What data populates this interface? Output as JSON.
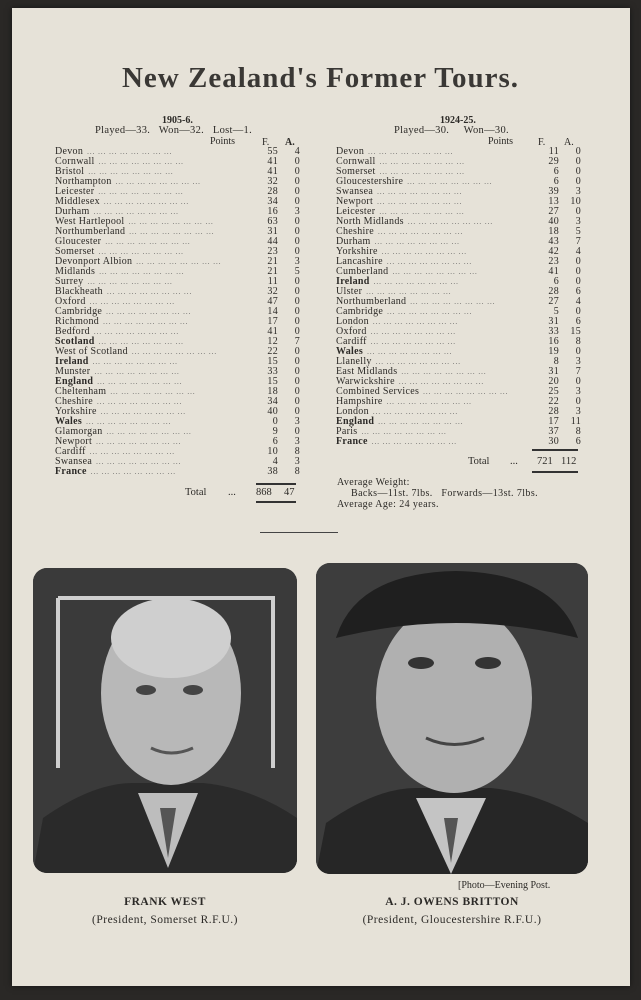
{
  "title": "New Zealand's Former Tours.",
  "tours": [
    {
      "season": "1905-6.",
      "summary": "Played—33.   Won—32.   Lost—1.",
      "points_label": "Points",
      "f_label": "F.",
      "a_label": "A.",
      "rows": [
        {
          "team": "Devon",
          "f": "55",
          "a": "4"
        },
        {
          "team": "Cornwall",
          "f": "41",
          "a": "0"
        },
        {
          "team": "Bristol",
          "f": "41",
          "a": "0"
        },
        {
          "team": "Northampton",
          "f": "32",
          "a": "0"
        },
        {
          "team": "Leicester",
          "f": "28",
          "a": "0"
        },
        {
          "team": "Middlesex",
          "f": "34",
          "a": "0"
        },
        {
          "team": "Durham",
          "f": "16",
          "a": "3"
        },
        {
          "team": "West Hartlepool",
          "f": "63",
          "a": "0"
        },
        {
          "team": "Northumberland",
          "f": "31",
          "a": "0"
        },
        {
          "team": "Gloucester",
          "f": "44",
          "a": "0"
        },
        {
          "team": "Somerset",
          "f": "23",
          "a": "0"
        },
        {
          "team": "Devonport Albion",
          "f": "21",
          "a": "3"
        },
        {
          "team": "Midlands",
          "f": "21",
          "a": "5"
        },
        {
          "team": "Surrey",
          "f": "11",
          "a": "0"
        },
        {
          "team": "Blackheath",
          "f": "32",
          "a": "0"
        },
        {
          "team": "Oxford",
          "f": "47",
          "a": "0"
        },
        {
          "team": "Cambridge",
          "f": "14",
          "a": "0"
        },
        {
          "team": "Richmond",
          "f": "17",
          "a": "0"
        },
        {
          "team": "Bedford",
          "f": "41",
          "a": "0"
        },
        {
          "team": "Scotland",
          "f": "12",
          "a": "7",
          "bold": true
        },
        {
          "team": "West of Scotland",
          "f": "22",
          "a": "0"
        },
        {
          "team": "Ireland",
          "f": "15",
          "a": "0",
          "bold": true
        },
        {
          "team": "Munster",
          "f": "33",
          "a": "0"
        },
        {
          "team": "England",
          "f": "15",
          "a": "0",
          "bold": true
        },
        {
          "team": "Cheltenham",
          "f": "18",
          "a": "0"
        },
        {
          "team": "Cheshire",
          "f": "34",
          "a": "0"
        },
        {
          "team": "Yorkshire",
          "f": "40",
          "a": "0"
        },
        {
          "team": "Wales",
          "f": "0",
          "a": "3",
          "bold": true
        },
        {
          "team": "Glamorgan",
          "f": "9",
          "a": "0"
        },
        {
          "team": "Newport",
          "f": "6",
          "a": "3"
        },
        {
          "team": "Cardiff",
          "f": "10",
          "a": "8"
        },
        {
          "team": "Swansea",
          "f": "4",
          "a": "3"
        },
        {
          "team": "France",
          "f": "38",
          "a": "8",
          "bold": true
        }
      ],
      "total_label": "Total",
      "total_f": "868",
      "total_a": "47"
    },
    {
      "season": "1924-25.",
      "summary": "Played—30.     Won—30.",
      "points_label": "Points",
      "f_label": "F.",
      "a_label": "A.",
      "rows": [
        {
          "team": "Devon",
          "f": "11",
          "a": "0"
        },
        {
          "team": "Cornwall",
          "f": "29",
          "a": "0"
        },
        {
          "team": "Somerset",
          "f": "6",
          "a": "0"
        },
        {
          "team": "Gloucestershire",
          "f": "6",
          "a": "0"
        },
        {
          "team": "Swansea",
          "f": "39",
          "a": "3"
        },
        {
          "team": "Newport",
          "f": "13",
          "a": "10"
        },
        {
          "team": "Leicester",
          "f": "27",
          "a": "0"
        },
        {
          "team": "North Midlands",
          "f": "40",
          "a": "3"
        },
        {
          "team": "Cheshire",
          "f": "18",
          "a": "5"
        },
        {
          "team": "Durham",
          "f": "43",
          "a": "7"
        },
        {
          "team": "Yorkshire",
          "f": "42",
          "a": "4"
        },
        {
          "team": "Lancashire",
          "f": "23",
          "a": "0"
        },
        {
          "team": "Cumberland",
          "f": "41",
          "a": "0"
        },
        {
          "team": "Ireland",
          "f": "6",
          "a": "0",
          "bold": true
        },
        {
          "team": "Ulster",
          "f": "28",
          "a": "6"
        },
        {
          "team": "Northumberland",
          "f": "27",
          "a": "4"
        },
        {
          "team": "Cambridge",
          "f": "5",
          "a": "0"
        },
        {
          "team": "London",
          "f": "31",
          "a": "6"
        },
        {
          "team": "Oxford",
          "f": "33",
          "a": "15"
        },
        {
          "team": "Cardiff",
          "f": "16",
          "a": "8"
        },
        {
          "team": "Wales",
          "f": "19",
          "a": "0",
          "bold": true
        },
        {
          "team": "Llanelly",
          "f": "8",
          "a": "3"
        },
        {
          "team": "East Midlands",
          "f": "31",
          "a": "7"
        },
        {
          "team": "Warwickshire",
          "f": "20",
          "a": "0"
        },
        {
          "team": "Combined Services",
          "f": "25",
          "a": "3"
        },
        {
          "team": "Hampshire",
          "f": "22",
          "a": "0"
        },
        {
          "team": "London",
          "f": "28",
          "a": "3"
        },
        {
          "team": "England",
          "f": "17",
          "a": "11",
          "bold": true
        },
        {
          "team": "Paris",
          "f": "37",
          "a": "8"
        },
        {
          "team": "France",
          "f": "30",
          "a": "6",
          "bold": true
        }
      ],
      "total_label": "Total",
      "total_f": "721",
      "total_a": "112"
    }
  ],
  "dots": "...",
  "averages": {
    "weight_label": "Average Weight:",
    "weight_detail": "Backs—11st. 7lbs.   Forwards—13st. 7lbs.",
    "age": "Average Age:  24 years."
  },
  "photos": [
    {
      "name": "FRANK WEST",
      "role": "(President, Somerset R.F.U.)"
    },
    {
      "name": "A. J. OWENS BRITTON",
      "role": "(President, Gloucestershire R.F.U.)"
    }
  ],
  "photo_credit": "[Photo—Evening Post."
}
